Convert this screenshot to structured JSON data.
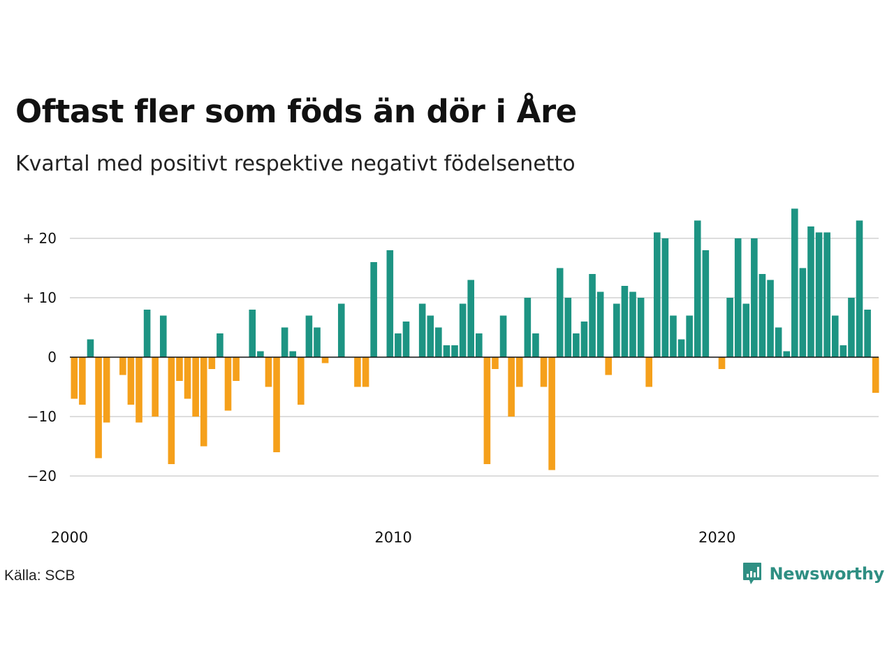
{
  "title": "Oftast fler som föds än dör i Åre",
  "subtitle": "Kvartal med positivt respektive negativt födelsenetto",
  "source": "Källa: SCB",
  "brand": {
    "name": "Newsworthy",
    "icon": "newsworthy-logo-icon",
    "color": "#2f8f83"
  },
  "colors": {
    "positive": "#1d9483",
    "negative": "#f5a01b",
    "grid": "#dddddd",
    "zero_line": "#111111"
  },
  "chart_data": {
    "type": "bar",
    "x_start": "2000 Q1",
    "x_end": "2024 Q4",
    "x_tick_labels": [
      "2000",
      "2010",
      "2020"
    ],
    "y_tick_labels": [
      "+ 20",
      "+ 10",
      "0",
      "−10",
      "−20"
    ],
    "y_ticks": [
      20,
      10,
      0,
      -10,
      -20
    ],
    "ylim": [
      -26,
      27
    ],
    "grid": true,
    "values": [
      -7,
      -8,
      3,
      -17,
      -11,
      0,
      -3,
      -8,
      -11,
      8,
      -10,
      7,
      -18,
      -4,
      -7,
      -10,
      -15,
      -2,
      4,
      -9,
      -4,
      0,
      8,
      1,
      -5,
      -16,
      5,
      1,
      -8,
      7,
      5,
      -1,
      0,
      9,
      0,
      -5,
      -5,
      16,
      0,
      18,
      4,
      6,
      0,
      9,
      7,
      5,
      2,
      2,
      9,
      13,
      4,
      -18,
      -2,
      7,
      -10,
      -5,
      10,
      4,
      -5,
      -19,
      15,
      10,
      4,
      6,
      14,
      11,
      -3,
      9,
      12,
      11,
      10,
      -5,
      21,
      20,
      7,
      3,
      7,
      23,
      18,
      0,
      -2,
      10,
      20,
      9,
      20,
      14,
      13,
      5,
      1,
      25,
      15,
      22,
      21,
      21,
      7,
      2,
      10,
      23,
      8,
      -6
    ]
  }
}
